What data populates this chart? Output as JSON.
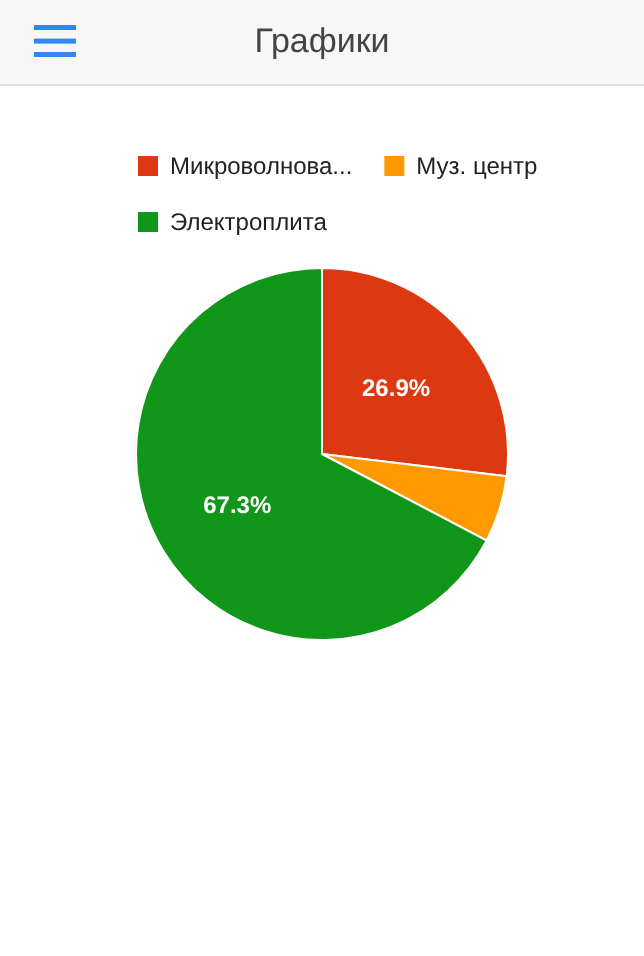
{
  "chart_data": {
    "type": "pie",
    "title": "Графики",
    "categories": [
      "Микроволнова...",
      "Муз. центр",
      "Электроплита"
    ],
    "values": [
      26.9,
      5.8,
      67.3
    ],
    "colors": [
      "#dc3912",
      "#ff9900",
      "#109618"
    ],
    "value_labels": [
      "26.9%",
      null,
      "67.3%"
    ],
    "legend": "top"
  }
}
